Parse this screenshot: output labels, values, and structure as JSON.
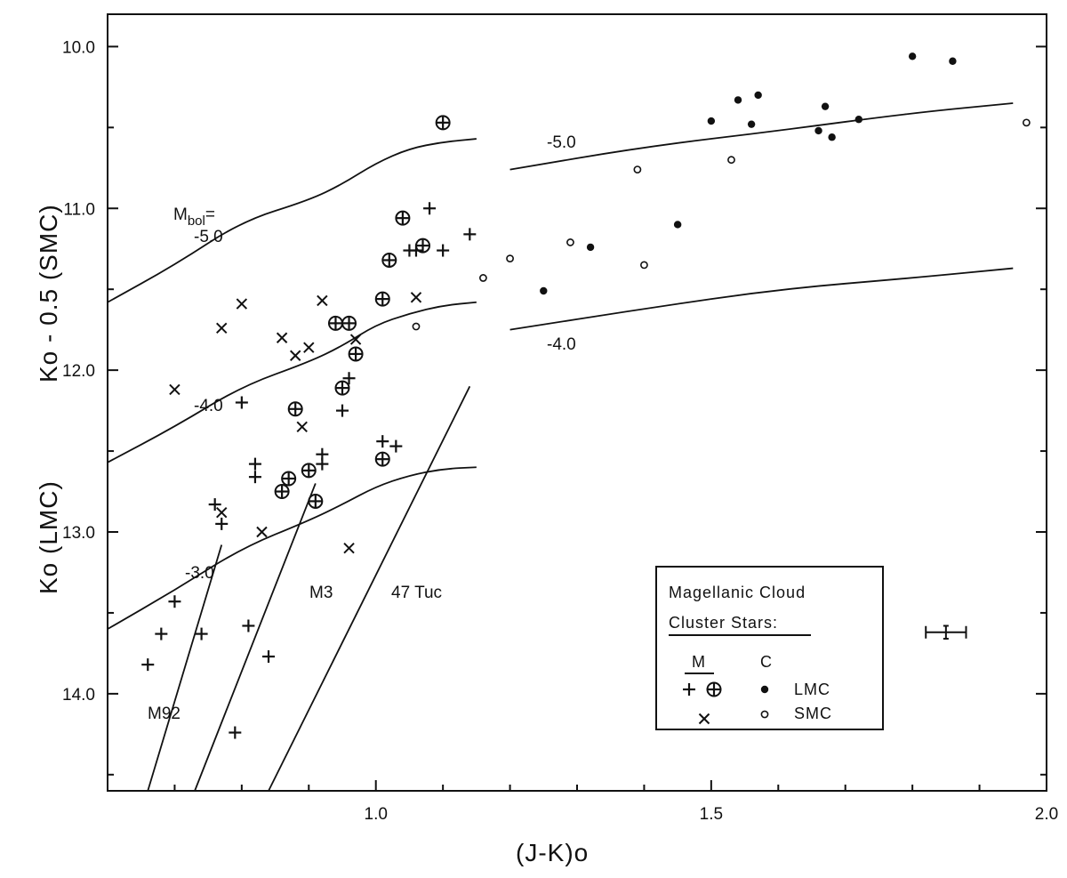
{
  "chart_data": {
    "type": "scatter",
    "title": "",
    "xlabel": "(J-K)o",
    "ylabel_top": "Ko - 0.5 (SMC)",
    "ylabel_bottom": "Ko (LMC)",
    "xlim": [
      0.6,
      2.0
    ],
    "ylim": [
      14.6,
      9.8
    ],
    "y_inverted": true,
    "grid": false,
    "x_ticks": [
      {
        "value": 1.0,
        "label": "1.0"
      },
      {
        "value": 1.5,
        "label": "1.5"
      },
      {
        "value": 2.0,
        "label": "2.0"
      }
    ],
    "y_ticks": [
      {
        "value": 10.0,
        "label": "10.0"
      },
      {
        "value": 11.0,
        "label": "11.0"
      },
      {
        "value": 12.0,
        "label": "12.0"
      },
      {
        "value": 13.0,
        "label": "13.0"
      },
      {
        "value": 14.0,
        "label": "14.0"
      }
    ],
    "mbol_curves": [
      {
        "label": "-5.0",
        "segment": "left",
        "points": [
          [
            0.6,
            11.58
          ],
          [
            0.7,
            11.35
          ],
          [
            0.8,
            11.08
          ],
          [
            0.9,
            10.95
          ],
          [
            0.95,
            10.85
          ],
          [
            1.0,
            10.72
          ],
          [
            1.05,
            10.63
          ],
          [
            1.1,
            10.59
          ],
          [
            1.15,
            10.57
          ]
        ]
      },
      {
        "label": "-4.0",
        "segment": "left",
        "points": [
          [
            0.6,
            12.57
          ],
          [
            0.7,
            12.35
          ],
          [
            0.8,
            12.1
          ],
          [
            0.9,
            11.95
          ],
          [
            0.95,
            11.85
          ],
          [
            1.0,
            11.72
          ],
          [
            1.05,
            11.65
          ],
          [
            1.1,
            11.6
          ],
          [
            1.15,
            11.58
          ]
        ]
      },
      {
        "label": "-3.0",
        "segment": "left",
        "points": [
          [
            0.6,
            13.6
          ],
          [
            0.7,
            13.36
          ],
          [
            0.8,
            13.1
          ],
          [
            0.9,
            12.93
          ],
          [
            0.95,
            12.83
          ],
          [
            1.0,
            12.72
          ],
          [
            1.05,
            12.65
          ],
          [
            1.1,
            12.61
          ],
          [
            1.15,
            12.6
          ]
        ]
      },
      {
        "label": "-5.0",
        "segment": "right",
        "points": [
          [
            1.2,
            10.76
          ],
          [
            1.4,
            10.62
          ],
          [
            1.6,
            10.52
          ],
          [
            1.8,
            10.41
          ],
          [
            1.95,
            10.35
          ]
        ]
      },
      {
        "label": "-4.0",
        "segment": "right",
        "points": [
          [
            1.2,
            11.75
          ],
          [
            1.4,
            11.62
          ],
          [
            1.6,
            11.5
          ],
          [
            1.8,
            11.43
          ],
          [
            1.95,
            11.37
          ]
        ]
      }
    ],
    "cluster_sequences": [
      {
        "name": "M92",
        "from": [
          0.66,
          14.6
        ],
        "to": [
          0.77,
          13.08
        ]
      },
      {
        "name": "M3",
        "from": [
          0.73,
          14.6
        ],
        "to": [
          0.91,
          12.7
        ]
      },
      {
        "name": "47 Tuc",
        "from": [
          0.84,
          14.6
        ],
        "to": [
          1.14,
          12.1
        ]
      }
    ],
    "series": [
      {
        "name": "LMC M",
        "marker": "plus",
        "points": [
          [
            0.66,
            13.82
          ],
          [
            0.68,
            13.63
          ],
          [
            0.7,
            13.43
          ],
          [
            0.74,
            13.63
          ],
          [
            0.76,
            12.83
          ],
          [
            0.77,
            12.95
          ],
          [
            0.8,
            12.2
          ],
          [
            0.81,
            13.58
          ],
          [
            0.82,
            12.58
          ],
          [
            0.82,
            12.66
          ],
          [
            0.84,
            13.77
          ],
          [
            0.92,
            12.52
          ],
          [
            0.92,
            12.58
          ],
          [
            0.95,
            12.25
          ],
          [
            0.96,
            12.05
          ],
          [
            1.01,
            12.44
          ],
          [
            1.03,
            12.47
          ],
          [
            1.06,
            11.26
          ],
          [
            1.05,
            11.26
          ],
          [
            1.08,
            11.0
          ],
          [
            1.1,
            11.26
          ],
          [
            1.14,
            11.16
          ],
          [
            0.79,
            14.24
          ]
        ]
      },
      {
        "name": "LMC M circled",
        "marker": "circle-plus",
        "points": [
          [
            1.1,
            10.47
          ],
          [
            1.04,
            11.06
          ],
          [
            1.07,
            11.23
          ],
          [
            1.02,
            11.32
          ],
          [
            1.01,
            11.56
          ],
          [
            0.94,
            11.71
          ],
          [
            0.96,
            11.71
          ],
          [
            0.97,
            11.9
          ],
          [
            0.95,
            12.11
          ],
          [
            0.88,
            12.24
          ],
          [
            0.87,
            12.67
          ],
          [
            0.86,
            12.75
          ],
          [
            0.9,
            12.62
          ],
          [
            0.91,
            12.81
          ],
          [
            1.01,
            12.55
          ]
        ]
      },
      {
        "name": "SMC M",
        "marker": "cross",
        "points": [
          [
            0.7,
            12.12
          ],
          [
            0.77,
            11.74
          ],
          [
            0.8,
            11.59
          ],
          [
            0.86,
            11.8
          ],
          [
            0.88,
            11.91
          ],
          [
            0.9,
            11.86
          ],
          [
            0.92,
            11.57
          ],
          [
            0.97,
            11.81
          ],
          [
            1.06,
            11.55
          ],
          [
            0.89,
            12.35
          ],
          [
            0.77,
            12.88
          ],
          [
            0.83,
            13.0
          ],
          [
            0.96,
            13.1
          ]
        ]
      },
      {
        "name": "LMC C",
        "marker": "filled-circle",
        "points": [
          [
            1.8,
            10.06
          ],
          [
            1.86,
            10.09
          ],
          [
            1.54,
            10.33
          ],
          [
            1.57,
            10.3
          ],
          [
            1.67,
            10.37
          ],
          [
            1.5,
            10.46
          ],
          [
            1.56,
            10.48
          ],
          [
            1.66,
            10.52
          ],
          [
            1.68,
            10.56
          ],
          [
            1.72,
            10.45
          ],
          [
            1.45,
            11.1
          ],
          [
            1.32,
            11.24
          ],
          [
            1.25,
            11.51
          ]
        ]
      },
      {
        "name": "SMC C",
        "marker": "open-circle",
        "points": [
          [
            1.97,
            10.47
          ],
          [
            1.39,
            10.76
          ],
          [
            1.53,
            10.7
          ],
          [
            1.29,
            11.21
          ],
          [
            1.4,
            11.35
          ],
          [
            1.2,
            11.31
          ],
          [
            1.16,
            11.43
          ],
          [
            1.06,
            11.73
          ]
        ]
      }
    ],
    "error_bar": {
      "x": 1.85,
      "y": 13.62,
      "xerr": 0.03,
      "yerr": 0.04
    },
    "curve_labels": {
      "mbol_left": "M",
      "mbol_sub": "bol",
      "mbol_eq": "=",
      "left_top_value": "-5.0",
      "left_mid": "-4.0",
      "left_low": "-3.0",
      "right_top": "-5.0",
      "right_mid": "-4.0",
      "m92": "M92",
      "m3": "M3",
      "tuc": "47 Tuc"
    },
    "legend": {
      "title_line1": "Magellanic  Cloud",
      "title_line2": "Cluster  Stars:",
      "col_m": "M",
      "col_c": "C",
      "row_lmc": "LMC",
      "row_smc": "SMC"
    }
  }
}
